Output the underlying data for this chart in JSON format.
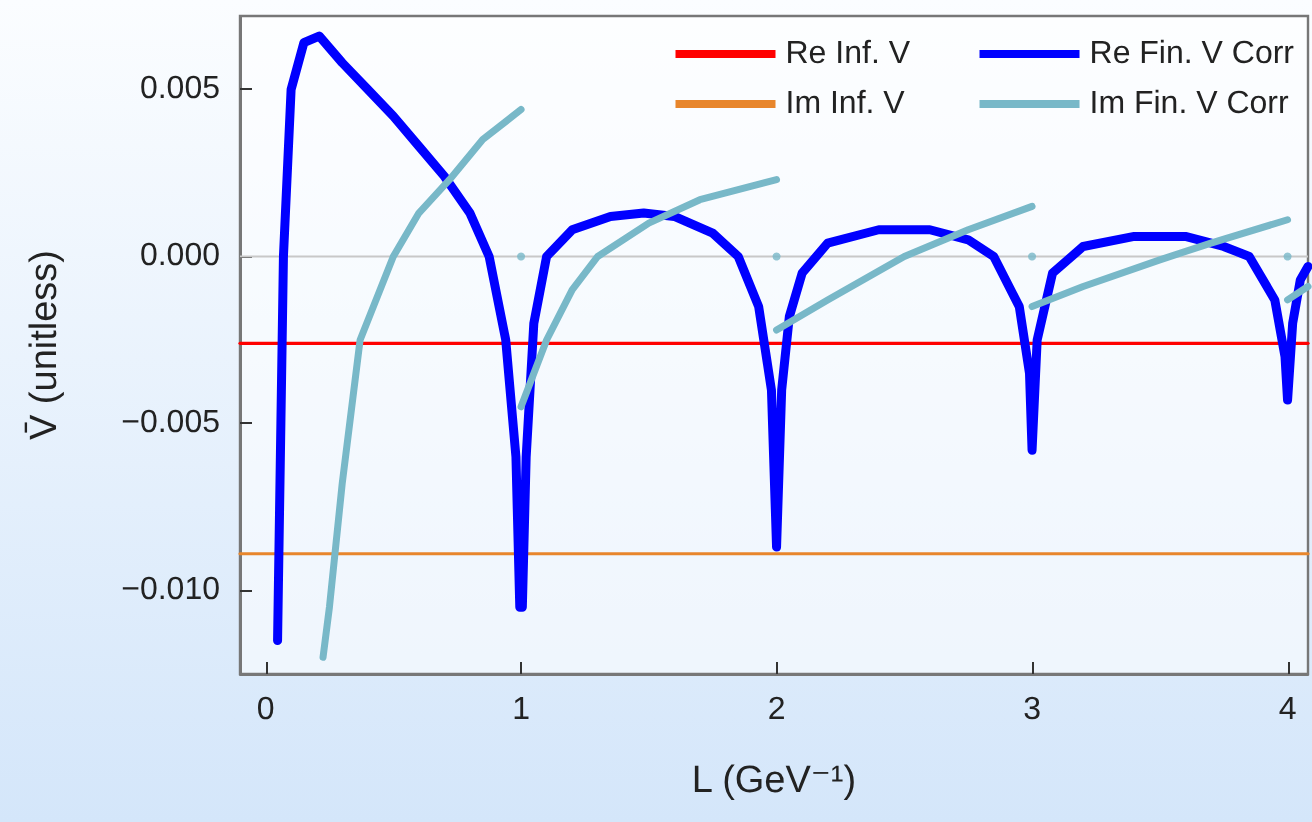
{
  "chart_data": {
    "type": "line",
    "xlabel": "L (GeV⁻¹)",
    "ylabel": "V̄ (unitless)",
    "xlim": [
      -0.1,
      4.08
    ],
    "ylim": [
      -0.0125,
      0.0072
    ],
    "xticks": [
      0,
      1,
      2,
      3,
      4
    ],
    "yticks": [
      {
        "value": 0.005,
        "label": "0.005"
      },
      {
        "value": 0,
        "label": "0.000"
      },
      {
        "value": -0.005,
        "label": "−0.005"
      },
      {
        "value": -0.01,
        "label": "−0.010"
      }
    ],
    "grid": false,
    "legend": "top right",
    "marker": "none",
    "line_style": "solid",
    "ref_lines": [
      {
        "axis": "y",
        "value": 0,
        "color": "#c8c8c8"
      }
    ],
    "series": [
      {
        "name": "Re Inf. V",
        "color": "#ff0000",
        "x": [
          -0.1,
          4.08
        ],
        "values": [
          -0.0026,
          -0.0026
        ]
      },
      {
        "name": "Im Inf. V",
        "color": "#e8862c",
        "x": [
          -0.1,
          4.08
        ],
        "values": [
          -0.0089,
          -0.0089
        ]
      },
      {
        "name": "Re Fin. V Corr",
        "color": "#0000ff",
        "x": [
          0.047,
          0.06,
          0.07,
          0.1,
          0.15,
          0.21,
          0.3,
          0.4,
          0.5,
          0.6,
          0.7,
          0.8,
          0.875,
          0.94,
          0.98,
          0.995,
          1.005,
          1.02,
          1.05,
          1.1,
          1.2,
          1.35,
          1.48,
          1.6,
          1.75,
          1.85,
          1.93,
          1.98,
          2.0,
          2.02,
          2.05,
          2.1,
          2.2,
          2.4,
          2.6,
          2.75,
          2.85,
          2.95,
          2.99,
          3.0,
          3.02,
          3.08,
          3.2,
          3.4,
          3.6,
          3.75,
          3.85,
          3.95,
          3.99,
          4.0,
          4.02,
          4.05,
          4.08
        ],
        "values": [
          -0.0115,
          -0.005,
          0,
          0.005,
          0.0064,
          0.0066,
          0.0058,
          0.005,
          0.0042,
          0.0033,
          0.0024,
          0.0013,
          0,
          -0.0025,
          -0.006,
          -0.0105,
          -0.0105,
          -0.006,
          -0.002,
          0,
          0.0008,
          0.0012,
          0.0013,
          0.0012,
          0.0007,
          0,
          -0.0015,
          -0.004,
          -0.0087,
          -0.004,
          -0.0018,
          -0.0005,
          0.0004,
          0.0008,
          0.0008,
          0.0005,
          0,
          -0.0015,
          -0.0035,
          -0.0058,
          -0.0025,
          -0.0005,
          0.0003,
          0.0006,
          0.0006,
          0.0003,
          0,
          -0.0013,
          -0.003,
          -0.0043,
          -0.002,
          -0.0007,
          -0.0003
        ]
      },
      {
        "name": "Im Fin. V Corr",
        "color": "#78b8c8",
        "x": [
          0.225,
          0.25,
          0.3,
          0.37,
          0.5,
          0.6,
          0.72,
          0.85,
          1.0
        ],
        "values": [
          -0.012,
          -0.0105,
          -0.0068,
          -0.0025,
          0,
          0.0013,
          0.0023,
          0.0035,
          0.0044
        ]
      },
      {
        "color": "#78b8c8",
        "x": [
          1.0,
          1.1,
          1.2,
          1.3,
          1.5,
          1.7,
          2.0
        ],
        "values": [
          -0.0045,
          -0.0025,
          -0.001,
          0,
          0.001,
          0.0017,
          0.0023
        ]
      },
      {
        "color": "#78b8c8",
        "x": [
          2.0,
          2.2,
          2.5,
          2.75,
          3.0
        ],
        "values": [
          -0.0022,
          -0.0013,
          0,
          0.0008,
          0.0015
        ]
      },
      {
        "color": "#78b8c8",
        "x": [
          3.0,
          3.2,
          3.5,
          3.7,
          4.0
        ],
        "values": [
          -0.0015,
          -0.0009,
          -0.0001,
          0.0004,
          0.0011
        ]
      },
      {
        "color": "#78b8c8",
        "x": [
          4.0,
          4.08
        ],
        "values": [
          -0.0013,
          -0.0009
        ]
      },
      {
        "type": "scatter",
        "color": "#78b8c8",
        "marker": "circle",
        "x": [
          1,
          2,
          3,
          4
        ],
        "values": [
          0,
          0,
          0,
          0
        ]
      }
    ]
  }
}
